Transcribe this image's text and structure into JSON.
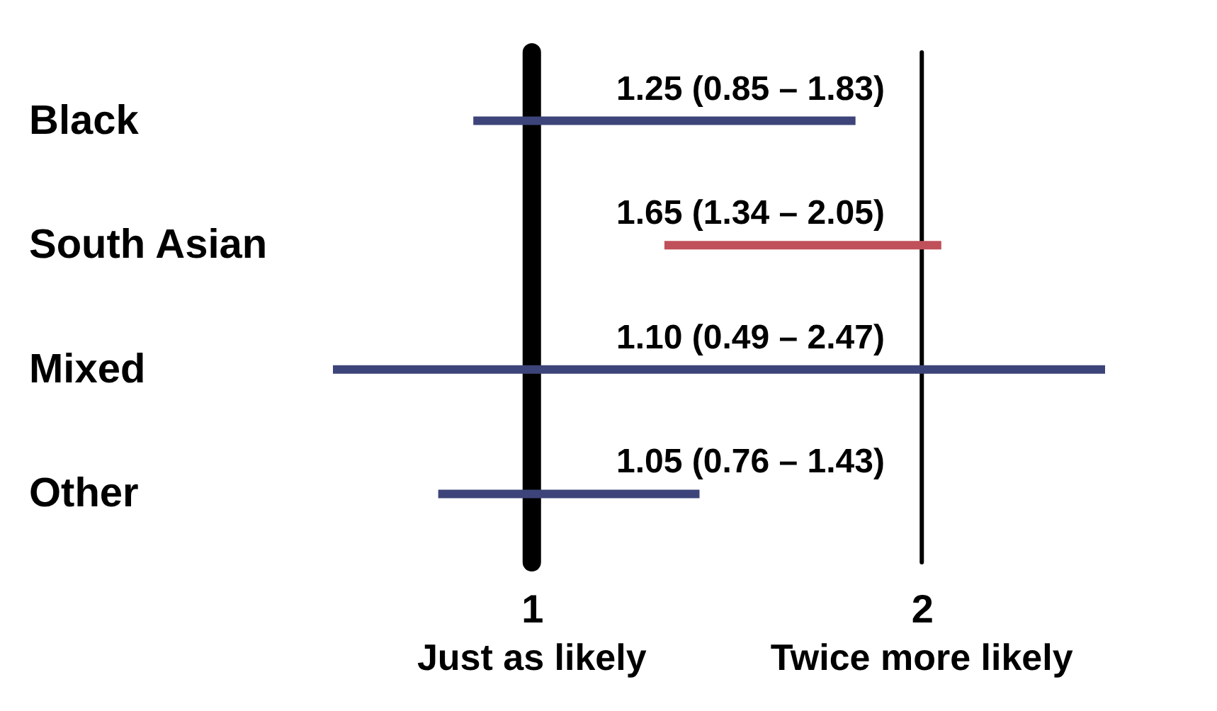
{
  "chart_data": {
    "type": "bar",
    "orientation": "horizontal",
    "categories": [
      "Black",
      "South Asian",
      "Mixed",
      "Other"
    ],
    "series": [
      {
        "colors": [
          "#3d4479",
          "#c0505a",
          "#3d4479",
          "#3d4479"
        ],
        "base": [
          0.85,
          1.34,
          0.49,
          0.76
        ],
        "values": [
          0.98,
          0.71,
          1.98,
          0.67
        ]
      }
    ],
    "annotations": [
      "1.25 (0.85 – 1.83)",
      "1.65 (1.34 – 2.05)",
      "1.10 (0.49 – 2.47)",
      "1.05 (0.76 – 1.43)"
    ],
    "xlim": [
      0.49,
      2.47
    ],
    "xticks": [
      {
        "value": 1,
        "label": "1"
      },
      {
        "value": 2,
        "label": "2"
      }
    ],
    "ref_lines": [
      {
        "axis": "x",
        "value": 1,
        "label": "Just as likely",
        "color": "#000000"
      },
      {
        "axis": "x",
        "value": 2,
        "label": "Twice more likely",
        "color": "#000000"
      }
    ]
  }
}
